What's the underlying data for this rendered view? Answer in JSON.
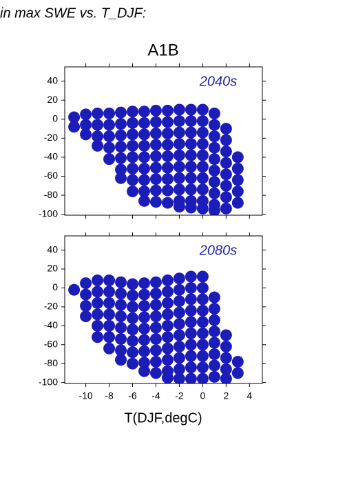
{
  "page_title": "in max SWE vs. T_DJF:",
  "chart_data": [
    {
      "type": "scatter",
      "title": "A1B",
      "annotation": "2040s",
      "annotation_color": "#2323b0",
      "xlim": [
        -11.8,
        5.1
      ],
      "ylim": [
        -101,
        55
      ],
      "xticks": [
        -10,
        -8,
        -6,
        -4,
        -2,
        0,
        2,
        4
      ],
      "yticks": [
        40,
        20,
        0,
        -20,
        -40,
        -60,
        -80,
        -100
      ],
      "series": [
        {
          "color": "#1c1cb8",
          "x": [
            -11,
            -11,
            -10,
            -10,
            -10,
            -9,
            -9,
            -9,
            -9,
            -8,
            -8,
            -8,
            -8,
            -8,
            -7,
            -7,
            -7,
            -7,
            -7,
            -7,
            -7,
            -6,
            -6,
            -6,
            -6,
            -6,
            -6,
            -6,
            -6,
            -5,
            -5,
            -5,
            -5,
            -5,
            -5,
            -5,
            -5,
            -5,
            -4,
            -4,
            -4,
            -4,
            -4,
            -4,
            -4,
            -4,
            -4,
            -3,
            -3,
            -3,
            -3,
            -3,
            -3,
            -3,
            -3,
            -3,
            -2,
            -2,
            -2,
            -2,
            -2,
            -2,
            -2,
            -2,
            -2,
            -2,
            -1,
            -1,
            -1,
            -1,
            -1,
            -1,
            -1,
            -1,
            -1,
            -1,
            0,
            0,
            0,
            0,
            0,
            0,
            0,
            0,
            0,
            0,
            1,
            1,
            1,
            1,
            1,
            1,
            1,
            1,
            1,
            1,
            2,
            2,
            2,
            2,
            2,
            2,
            2,
            2,
            3,
            3,
            3,
            3,
            3
          ],
          "values": [
            2,
            -8,
            5,
            -6,
            -16,
            6,
            -6,
            -18,
            -28,
            6,
            -6,
            -18,
            -30,
            -42,
            7,
            -5,
            -17,
            -29,
            -41,
            -53,
            -62,
            8,
            -4,
            -16,
            -28,
            -40,
            -52,
            -64,
            -76,
            8,
            -4,
            -16,
            -28,
            -40,
            -52,
            -64,
            -76,
            -86,
            9,
            -3,
            -15,
            -27,
            -39,
            -51,
            -63,
            -75,
            -87,
            9,
            -3,
            -15,
            -27,
            -39,
            -51,
            -63,
            -75,
            -88,
            10,
            -2,
            -14,
            -26,
            -38,
            -50,
            -62,
            -74,
            -86,
            -92,
            10,
            -2,
            -14,
            -26,
            -38,
            -50,
            -62,
            -74,
            -86,
            -93,
            10,
            -2,
            -14,
            -26,
            -38,
            -50,
            -62,
            -74,
            -86,
            -94,
            6,
            -6,
            -18,
            -30,
            -42,
            -54,
            -66,
            -78,
            -90,
            -96,
            -10,
            -22,
            -34,
            -46,
            -58,
            -70,
            -82,
            -94,
            -40,
            -52,
            -64,
            -76,
            -88
          ]
        }
      ]
    },
    {
      "type": "scatter",
      "annotation": "2080s",
      "annotation_color": "#2323b0",
      "x_label": "T(DJF,degC)",
      "xlim": [
        -11.8,
        5.1
      ],
      "ylim": [
        -101,
        55
      ],
      "xticks": [
        -10,
        -8,
        -6,
        -4,
        -2,
        0,
        2,
        4
      ],
      "yticks": [
        40,
        20,
        0,
        -20,
        -40,
        -60,
        -80,
        -100
      ],
      "series": [
        {
          "color": "#1c1cb8",
          "x": [
            -11,
            -10,
            -10,
            -10,
            -10,
            -9,
            -9,
            -9,
            -9,
            -9,
            -9,
            -8,
            -8,
            -8,
            -8,
            -8,
            -8,
            -8,
            -7,
            -7,
            -7,
            -7,
            -7,
            -7,
            -7,
            -7,
            -6,
            -6,
            -6,
            -6,
            -6,
            -6,
            -6,
            -6,
            -5,
            -5,
            -5,
            -5,
            -5,
            -5,
            -5,
            -5,
            -5,
            -4,
            -4,
            -4,
            -4,
            -4,
            -4,
            -4,
            -4,
            -4,
            -3,
            -3,
            -3,
            -3,
            -3,
            -3,
            -3,
            -3,
            -3,
            -3,
            -2,
            -2,
            -2,
            -2,
            -2,
            -2,
            -2,
            -2,
            -2,
            -2,
            -1,
            -1,
            -1,
            -1,
            -1,
            -1,
            -1,
            -1,
            -1,
            -1,
            0,
            0,
            0,
            0,
            0,
            0,
            0,
            0,
            0,
            0,
            1,
            1,
            1,
            1,
            1,
            1,
            1,
            1,
            2,
            2,
            2,
            2,
            2,
            3,
            3
          ],
          "values": [
            -2,
            5,
            -7,
            -19,
            -30,
            8,
            -4,
            -16,
            -28,
            -40,
            -52,
            8,
            -4,
            -16,
            -28,
            -40,
            -52,
            -64,
            6,
            -6,
            -18,
            -30,
            -42,
            -54,
            -66,
            -76,
            4,
            -8,
            -20,
            -32,
            -44,
            -56,
            -68,
            -80,
            5,
            -7,
            -19,
            -31,
            -43,
            -55,
            -67,
            -79,
            -88,
            6,
            -6,
            -18,
            -30,
            -42,
            -54,
            -66,
            -78,
            -90,
            8,
            -4,
            -16,
            -28,
            -40,
            -52,
            -64,
            -76,
            -88,
            -95,
            10,
            -2,
            -14,
            -26,
            -38,
            -50,
            -62,
            -74,
            -86,
            -96,
            12,
            0,
            -12,
            -24,
            -36,
            -48,
            -60,
            -72,
            -84,
            -96,
            12,
            0,
            -12,
            -24,
            -36,
            -48,
            -60,
            -72,
            -84,
            -96,
            -10,
            -22,
            -34,
            -46,
            -58,
            -70,
            -82,
            -94,
            -50,
            -62,
            -74,
            -86,
            -96,
            -78,
            -90
          ]
        }
      ]
    }
  ]
}
